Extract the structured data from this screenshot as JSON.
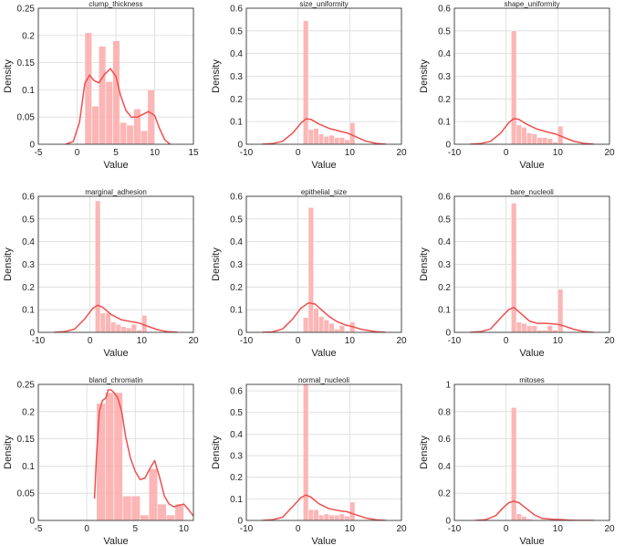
{
  "colors": {
    "bar": "#fba9a9",
    "kde": "#ef4f4f"
  },
  "chart_data": [
    {
      "type": "bar",
      "title": "clump_thickness",
      "xlabel": "Value",
      "ylabel": "Density",
      "xlim": [
        -5,
        15
      ],
      "ylim": [
        0,
        0.25
      ],
      "xticks": [
        -5,
        0,
        5,
        10,
        15
      ],
      "xtick_labels": [
        "-5",
        "0",
        "5",
        "10",
        "15"
      ],
      "yticks": [
        0,
        0.05,
        0.1,
        0.15,
        0.2,
        0.25
      ],
      "ytick_labels": [
        "0",
        "0.05",
        "0.1",
        "0.15",
        "0.2",
        "0.25"
      ],
      "bins": [
        [
          1,
          1.9,
          0.205
        ],
        [
          1.9,
          2.8,
          0.07
        ],
        [
          2.8,
          3.7,
          0.18
        ],
        [
          3.7,
          4.6,
          0.115
        ],
        [
          4.6,
          5.5,
          0.19
        ],
        [
          5.5,
          6.4,
          0.04
        ],
        [
          6.4,
          7.3,
          0.035
        ],
        [
          7.3,
          8.2,
          0.065
        ],
        [
          8.2,
          9.1,
          0.025
        ],
        [
          9.1,
          10,
          0.1
        ]
      ],
      "kde": [
        [
          -1.5,
          0
        ],
        [
          -0.5,
          0.005
        ],
        [
          0.3,
          0.04
        ],
        [
          1.0,
          0.112
        ],
        [
          1.6,
          0.127
        ],
        [
          2.2,
          0.117
        ],
        [
          2.8,
          0.113
        ],
        [
          3.5,
          0.128
        ],
        [
          4.3,
          0.139
        ],
        [
          5.0,
          0.125
        ],
        [
          5.6,
          0.09
        ],
        [
          6.3,
          0.062
        ],
        [
          7.0,
          0.05
        ],
        [
          7.8,
          0.05
        ],
        [
          8.5,
          0.055
        ],
        [
          9.2,
          0.06
        ],
        [
          10.0,
          0.053
        ],
        [
          10.6,
          0.03
        ],
        [
          11.3,
          0.008
        ],
        [
          12,
          0
        ]
      ]
    },
    {
      "type": "bar",
      "title": "size_uniformity",
      "xlabel": "Value",
      "ylabel": "Density",
      "xlim": [
        -10,
        20
      ],
      "ylim": [
        0,
        0.6
      ],
      "xticks": [
        -10,
        0,
        10,
        20
      ],
      "xtick_labels": [
        "-10",
        "0",
        "10",
        "20"
      ],
      "yticks": [
        0,
        0.1,
        0.2,
        0.3,
        0.4,
        0.5,
        0.6
      ],
      "ytick_labels": [
        "0",
        "0.1",
        "0.2",
        "0.3",
        "0.4",
        "0.5",
        "0.6"
      ],
      "bins": [
        [
          1,
          2,
          0.545
        ],
        [
          2,
          3,
          0.065
        ],
        [
          3,
          4,
          0.07
        ],
        [
          4,
          5,
          0.045
        ],
        [
          5,
          6,
          0.035
        ],
        [
          6,
          7,
          0.04
        ],
        [
          7,
          8,
          0.03
        ],
        [
          8,
          9,
          0.03
        ],
        [
          9,
          10,
          0.02
        ],
        [
          10,
          11,
          0.095
        ]
      ],
      "kde": [
        [
          -7,
          0
        ],
        [
          -5,
          0.003
        ],
        [
          -3,
          0.013
        ],
        [
          -1,
          0.05
        ],
        [
          0.5,
          0.092
        ],
        [
          1.5,
          0.112
        ],
        [
          2.5,
          0.11
        ],
        [
          4,
          0.09
        ],
        [
          6,
          0.07
        ],
        [
          8,
          0.058
        ],
        [
          9.5,
          0.05
        ],
        [
          11,
          0.035
        ],
        [
          13,
          0.015
        ],
        [
          15,
          0.004
        ],
        [
          17,
          0
        ]
      ]
    },
    {
      "type": "bar",
      "title": "shape_uniformity",
      "xlabel": "Value",
      "ylabel": "Density",
      "xlim": [
        -10,
        20
      ],
      "ylim": [
        0,
        0.6
      ],
      "xticks": [
        -10,
        0,
        10,
        20
      ],
      "xtick_labels": [
        "-10",
        "0",
        "10",
        "20"
      ],
      "yticks": [
        0,
        0.1,
        0.2,
        0.3,
        0.4,
        0.5,
        0.6
      ],
      "ytick_labels": [
        "0",
        "0.1",
        "0.2",
        "0.3",
        "0.4",
        "0.5",
        "0.6"
      ],
      "bins": [
        [
          1,
          2,
          0.5
        ],
        [
          2,
          3,
          0.085
        ],
        [
          3,
          4,
          0.075
        ],
        [
          4,
          5,
          0.05
        ],
        [
          5,
          6,
          0.045
        ],
        [
          6,
          7,
          0.03
        ],
        [
          7,
          8,
          0.03
        ],
        [
          8,
          9,
          0.025
        ],
        [
          9,
          10,
          0.01
        ],
        [
          10,
          11,
          0.08
        ]
      ],
      "kde": [
        [
          -7,
          0
        ],
        [
          -5,
          0.003
        ],
        [
          -3,
          0.013
        ],
        [
          -1,
          0.05
        ],
        [
          0.5,
          0.095
        ],
        [
          1.5,
          0.113
        ],
        [
          2.5,
          0.11
        ],
        [
          4,
          0.088
        ],
        [
          6,
          0.067
        ],
        [
          8,
          0.054
        ],
        [
          9.5,
          0.046
        ],
        [
          11,
          0.032
        ],
        [
          13,
          0.014
        ],
        [
          15,
          0.004
        ],
        [
          17,
          0
        ]
      ]
    },
    {
      "type": "bar",
      "title": "marginal_adhesion",
      "xlabel": "Value",
      "ylabel": "Density",
      "xlim": [
        -10,
        20
      ],
      "ylim": [
        0,
        0.6
      ],
      "xticks": [
        -10,
        0,
        10,
        20
      ],
      "xtick_labels": [
        "-10",
        "0",
        "10",
        "20"
      ],
      "yticks": [
        0,
        0.1,
        0.2,
        0.3,
        0.4,
        0.5,
        0.6
      ],
      "ytick_labels": [
        "0",
        "0.1",
        "0.2",
        "0.3",
        "0.4",
        "0.5",
        "0.6"
      ],
      "bins": [
        [
          1,
          2,
          0.58
        ],
        [
          2,
          3,
          0.085
        ],
        [
          3,
          4,
          0.085
        ],
        [
          4,
          5,
          0.045
        ],
        [
          5,
          6,
          0.035
        ],
        [
          6,
          7,
          0.025
        ],
        [
          7,
          8,
          0.02
        ],
        [
          8,
          9,
          0.035
        ],
        [
          9,
          10,
          0.01
        ],
        [
          10,
          11,
          0.075
        ]
      ],
      "kde": [
        [
          -7,
          0
        ],
        [
          -5,
          0.003
        ],
        [
          -3,
          0.014
        ],
        [
          -1,
          0.06
        ],
        [
          0.5,
          0.105
        ],
        [
          1.5,
          0.12
        ],
        [
          2.5,
          0.11
        ],
        [
          4,
          0.08
        ],
        [
          6,
          0.056
        ],
        [
          8,
          0.047
        ],
        [
          9.5,
          0.041
        ],
        [
          11,
          0.028
        ],
        [
          13,
          0.012
        ],
        [
          15,
          0.003
        ],
        [
          17,
          0
        ]
      ]
    },
    {
      "type": "bar",
      "title": "epithelial_size",
      "xlabel": "Value",
      "ylabel": "Density",
      "xlim": [
        -10,
        20
      ],
      "ylim": [
        0,
        0.6
      ],
      "xticks": [
        -10,
        0,
        10,
        20
      ],
      "xtick_labels": [
        "-10",
        "0",
        "10",
        "20"
      ],
      "yticks": [
        0,
        0.1,
        0.2,
        0.3,
        0.4,
        0.5,
        0.6
      ],
      "ytick_labels": [
        "0",
        "0.1",
        "0.2",
        "0.3",
        "0.4",
        "0.5",
        "0.6"
      ],
      "bins": [
        [
          1,
          2,
          0.065
        ],
        [
          2,
          3,
          0.55
        ],
        [
          3,
          4,
          0.105
        ],
        [
          4,
          5,
          0.07
        ],
        [
          5,
          6,
          0.055
        ],
        [
          6,
          7,
          0.04
        ],
        [
          7,
          8,
          0.015
        ],
        [
          8,
          9,
          0.03
        ],
        [
          9,
          10,
          0.005
        ],
        [
          10,
          11,
          0.045
        ]
      ],
      "kde": [
        [
          -7,
          0
        ],
        [
          -5,
          0.002
        ],
        [
          -3,
          0.015
        ],
        [
          -1,
          0.06
        ],
        [
          0.5,
          0.105
        ],
        [
          2,
          0.13
        ],
        [
          3.3,
          0.125
        ],
        [
          4.5,
          0.1
        ],
        [
          6,
          0.07
        ],
        [
          7.5,
          0.048
        ],
        [
          9,
          0.034
        ],
        [
          10.5,
          0.025
        ],
        [
          12.5,
          0.012
        ],
        [
          15,
          0.003
        ],
        [
          17,
          0
        ]
      ]
    },
    {
      "type": "bar",
      "title": "bare_nucleoli",
      "xlabel": "Value",
      "ylabel": "Density",
      "xlim": [
        -10,
        20
      ],
      "ylim": [
        0,
        0.6
      ],
      "xticks": [
        -10,
        0,
        10,
        20
      ],
      "xtick_labels": [
        "-10",
        "0",
        "10",
        "20"
      ],
      "yticks": [
        0,
        0.1,
        0.2,
        0.3,
        0.4,
        0.5,
        0.6
      ],
      "ytick_labels": [
        "0",
        "0.1",
        "0.2",
        "0.3",
        "0.4",
        "0.5",
        "0.6"
      ],
      "bins": [
        [
          1,
          2,
          0.57
        ],
        [
          2,
          3,
          0.045
        ],
        [
          3,
          4,
          0.04
        ],
        [
          4,
          5,
          0.03
        ],
        [
          5,
          6,
          0.03
        ],
        [
          6,
          7,
          0.01
        ],
        [
          7,
          8,
          0.01
        ],
        [
          8,
          9,
          0.03
        ],
        [
          9,
          10,
          0.01
        ],
        [
          10,
          11,
          0.19
        ]
      ],
      "kde": [
        [
          -7,
          0
        ],
        [
          -5,
          0.003
        ],
        [
          -3,
          0.015
        ],
        [
          -1,
          0.065
        ],
        [
          0.5,
          0.1
        ],
        [
          1.5,
          0.11
        ],
        [
          3,
          0.08
        ],
        [
          4.5,
          0.05
        ],
        [
          6,
          0.04
        ],
        [
          7.5,
          0.04
        ],
        [
          9,
          0.038
        ],
        [
          10,
          0.035
        ],
        [
          11,
          0.03
        ],
        [
          13,
          0.014
        ],
        [
          15,
          0.004
        ],
        [
          17,
          0
        ]
      ]
    },
    {
      "type": "bar",
      "title": "bland_chromatin",
      "xlabel": "Value",
      "ylabel": "Density",
      "xlim": [
        -5,
        11
      ],
      "ylim": [
        0,
        0.25
      ],
      "xticks": [
        -5,
        0,
        5,
        10
      ],
      "xtick_labels": [
        "-5",
        "0",
        "5",
        "10"
      ],
      "yticks": [
        0,
        0.05,
        0.1,
        0.15,
        0.2,
        0.25
      ],
      "ytick_labels": [
        "0",
        "0.05",
        "0.1",
        "0.15",
        "0.2",
        "0.25"
      ],
      "bins": [
        [
          1,
          1.9,
          0.215
        ],
        [
          1.9,
          2.8,
          0.235
        ],
        [
          2.8,
          3.7,
          0.235
        ],
        [
          3.7,
          4.6,
          0.045
        ],
        [
          4.6,
          5.5,
          0.045
        ],
        [
          5.5,
          6.4,
          0.01
        ],
        [
          6.4,
          7.3,
          0.095
        ],
        [
          7.3,
          8.2,
          0.03
        ],
        [
          8.2,
          9.1,
          0.01
        ],
        [
          9.1,
          10,
          0.03
        ]
      ],
      "kde": [
        [
          0.8,
          0.04
        ],
        [
          1.0,
          0.12
        ],
        [
          1.3,
          0.2
        ],
        [
          1.6,
          0.22
        ],
        [
          2.0,
          0.226
        ],
        [
          2.2,
          0.24
        ],
        [
          2.5,
          0.24
        ],
        [
          2.8,
          0.235
        ],
        [
          3.2,
          0.225
        ],
        [
          3.6,
          0.2
        ],
        [
          4.0,
          0.155
        ],
        [
          4.5,
          0.115
        ],
        [
          5.0,
          0.09
        ],
        [
          5.5,
          0.075
        ],
        [
          6.0,
          0.078
        ],
        [
          6.5,
          0.095
        ],
        [
          7.0,
          0.11
        ],
        [
          7.5,
          0.08
        ],
        [
          8.0,
          0.045
        ],
        [
          8.5,
          0.03
        ],
        [
          9.0,
          0.025
        ],
        [
          9.5,
          0.028
        ],
        [
          10.0,
          0.03
        ],
        [
          10.5,
          0.02
        ],
        [
          11,
          0.008
        ]
      ]
    },
    {
      "type": "bar",
      "title": "normal_nucleoli",
      "xlabel": "Value",
      "ylabel": "Density",
      "xlim": [
        -10,
        20
      ],
      "ylim": [
        0,
        0.63
      ],
      "xticks": [
        -10,
        0,
        10,
        20
      ],
      "xtick_labels": [
        "-10",
        "0",
        "10",
        "20"
      ],
      "yticks": [
        0,
        0.1,
        0.2,
        0.3,
        0.4,
        0.5,
        0.6
      ],
      "ytick_labels": [
        "0",
        "0.1",
        "0.2",
        "0.3",
        "0.4",
        "0.5",
        "0.6"
      ],
      "bins": [
        [
          1,
          2,
          0.63
        ],
        [
          2,
          3,
          0.05
        ],
        [
          3,
          4,
          0.05
        ],
        [
          4,
          5,
          0.025
        ],
        [
          5,
          6,
          0.03
        ],
        [
          6,
          7,
          0.025
        ],
        [
          7,
          8,
          0.025
        ],
        [
          8,
          9,
          0.03
        ],
        [
          9,
          10,
          0.02
        ],
        [
          10,
          11,
          0.085
        ]
      ],
      "kde": [
        [
          -7,
          0
        ],
        [
          -5,
          0.003
        ],
        [
          -3,
          0.015
        ],
        [
          -1,
          0.065
        ],
        [
          0.5,
          0.105
        ],
        [
          1.5,
          0.118
        ],
        [
          2.5,
          0.108
        ],
        [
          4,
          0.078
        ],
        [
          6,
          0.054
        ],
        [
          8,
          0.045
        ],
        [
          9.5,
          0.04
        ],
        [
          11,
          0.028
        ],
        [
          13,
          0.012
        ],
        [
          15,
          0.003
        ],
        [
          17,
          0
        ]
      ]
    },
    {
      "type": "bar",
      "title": "mitoses",
      "xlabel": "Value",
      "ylabel": "Density",
      "xlim": [
        -10,
        20
      ],
      "ylim": [
        0,
        1
      ],
      "xticks": [
        -10,
        0,
        10,
        20
      ],
      "xtick_labels": [
        "-10",
        "0",
        "10",
        "20"
      ],
      "yticks": [
        0,
        0.2,
        0.4,
        0.6,
        0.8,
        1
      ],
      "ytick_labels": [
        "0",
        "0.2",
        "0.4",
        "0.6",
        "0.8",
        "1"
      ],
      "bins": [
        [
          1,
          2,
          0.83
        ],
        [
          2,
          3,
          0.05
        ],
        [
          3,
          4,
          0.03
        ],
        [
          4,
          5,
          0.012
        ],
        [
          5,
          6,
          0.005
        ],
        [
          6,
          7,
          0.003
        ],
        [
          7,
          8,
          0.005
        ],
        [
          8,
          9,
          0.002
        ],
        [
          9,
          10,
          0.001
        ],
        [
          10,
          11,
          0.012
        ]
      ],
      "kde": [
        [
          -6,
          0
        ],
        [
          -4,
          0.005
        ],
        [
          -2,
          0.035
        ],
        [
          -0.5,
          0.095
        ],
        [
          0.5,
          0.13
        ],
        [
          1.5,
          0.142
        ],
        [
          2.5,
          0.13
        ],
        [
          4,
          0.085
        ],
        [
          5.5,
          0.04
        ],
        [
          7,
          0.015
        ],
        [
          9,
          0.008
        ],
        [
          10.5,
          0.007
        ],
        [
          12,
          0.003
        ],
        [
          14,
          0
        ],
        [
          17,
          0
        ]
      ]
    }
  ]
}
